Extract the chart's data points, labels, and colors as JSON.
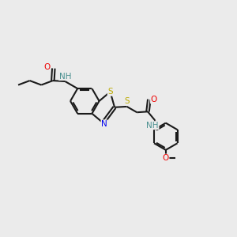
{
  "background_color": "#ebebeb",
  "bond_color": "#1a1a1a",
  "atom_colors": {
    "N": "#0000ee",
    "O": "#ee0000",
    "S": "#bbaa00",
    "NH": "#4a9090",
    "C": "#1a1a1a"
  },
  "bond_lw": 1.5,
  "font_size": 7.5
}
